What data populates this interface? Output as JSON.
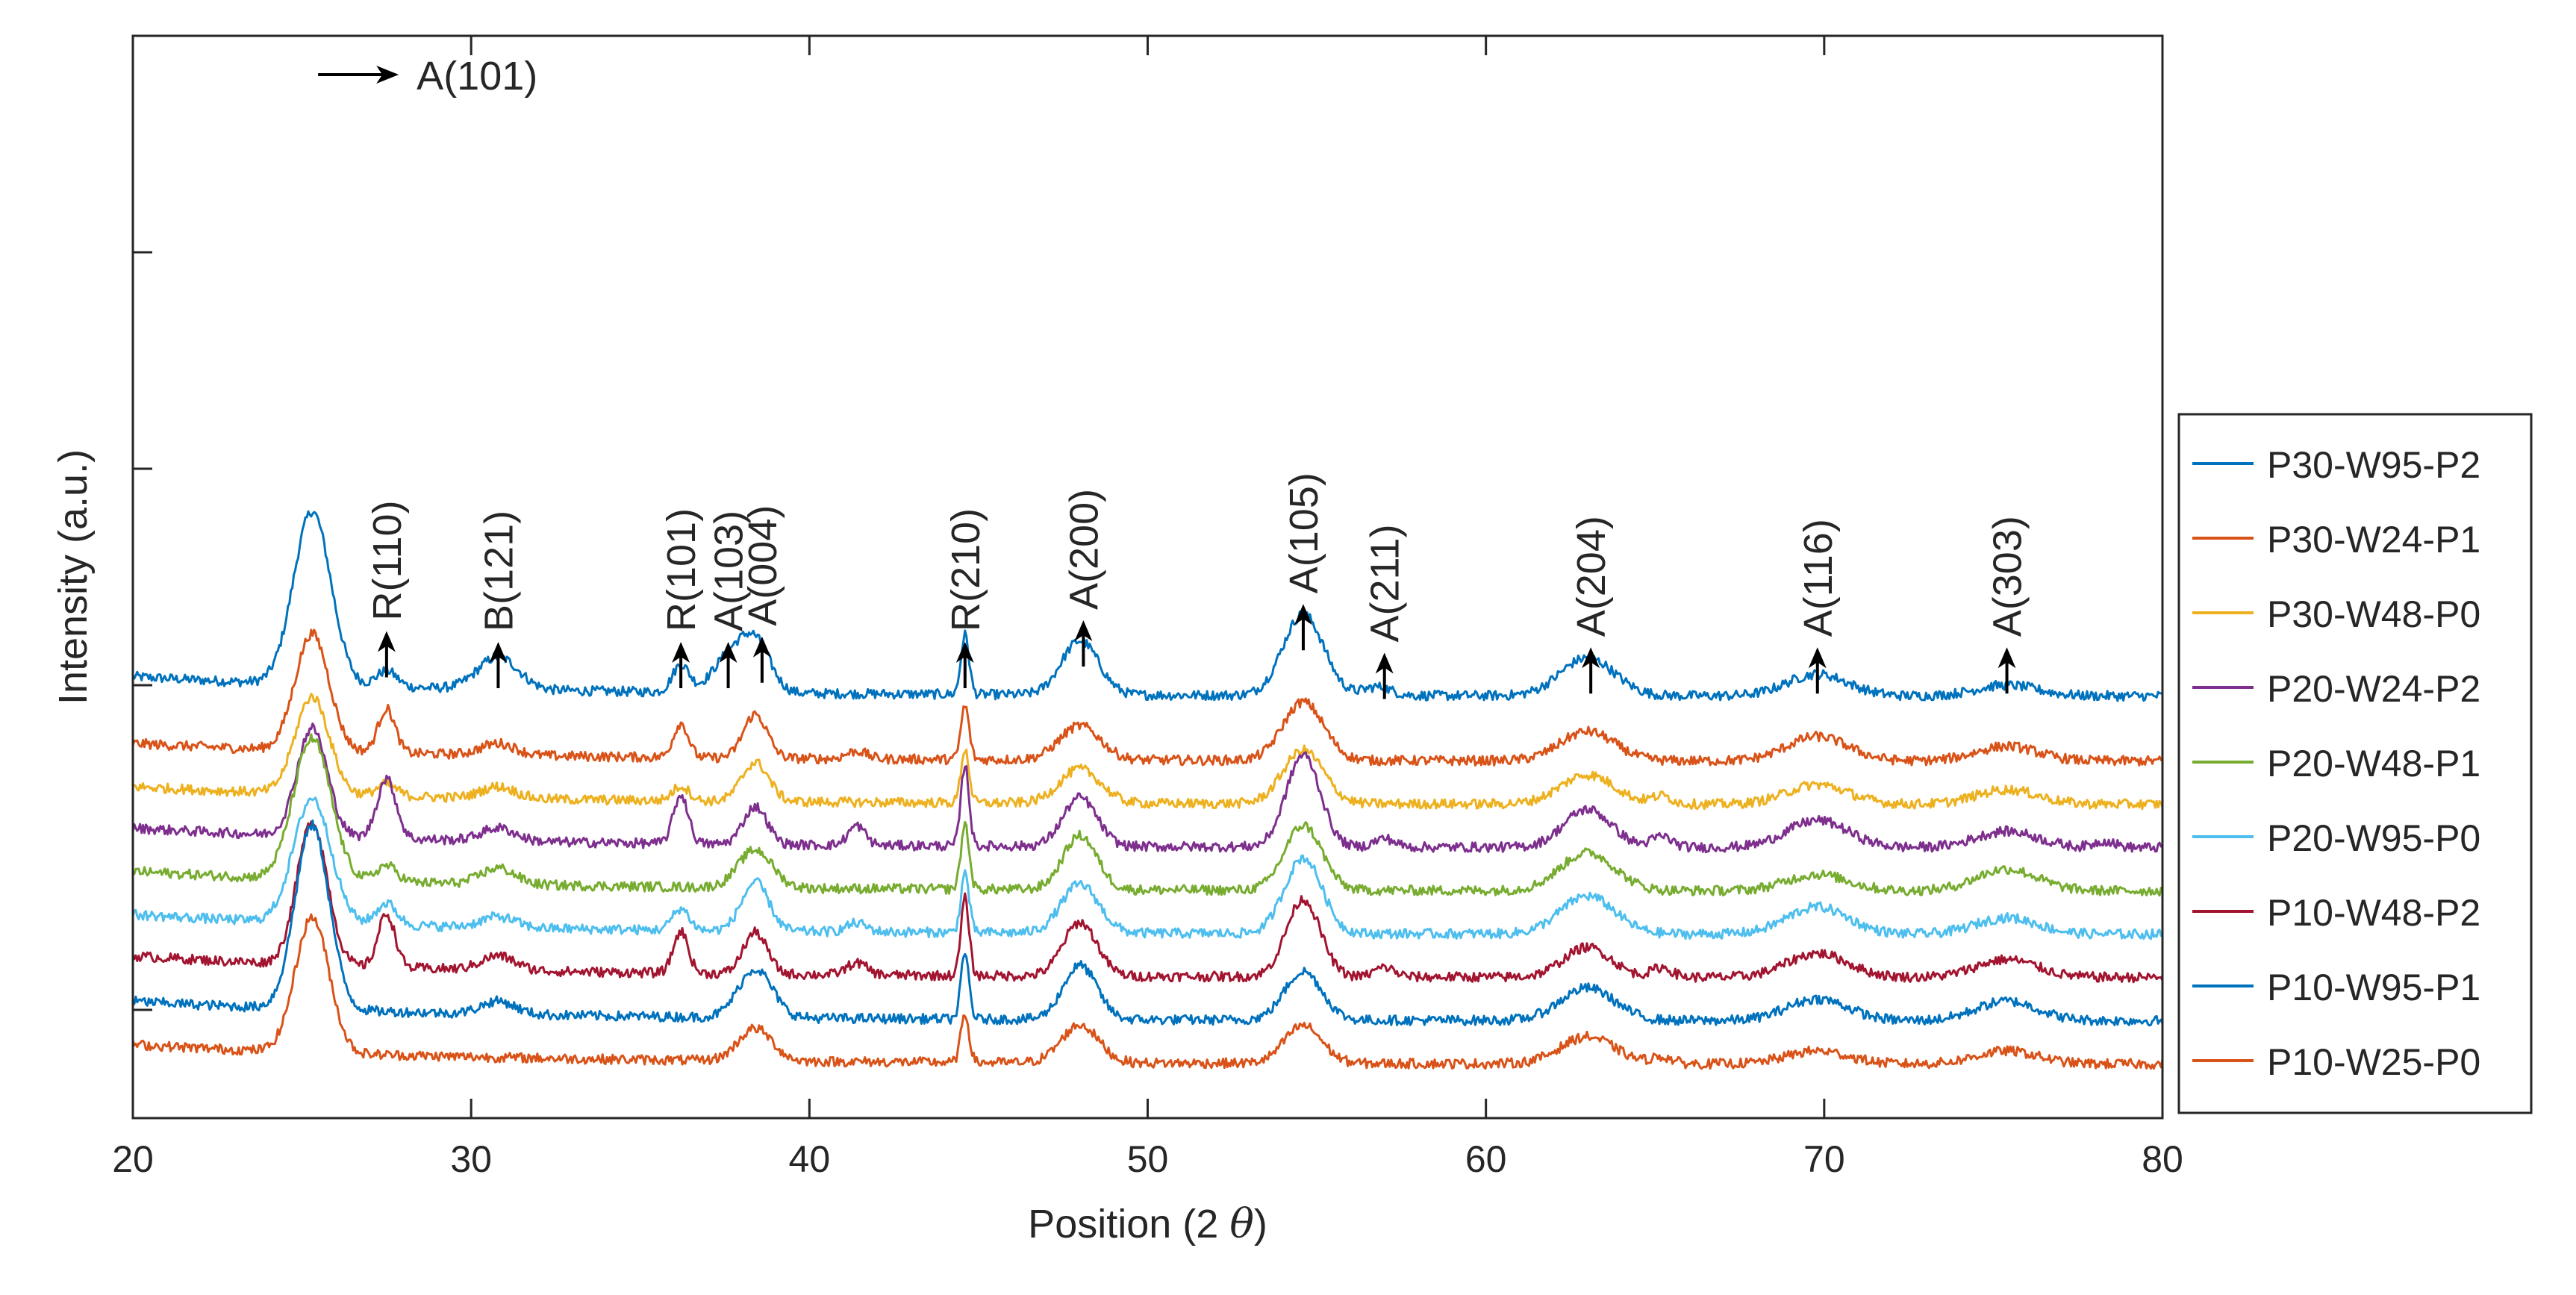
{
  "chart_data": {
    "type": "line",
    "title": "",
    "xlabel_prefix": "Position (2 ",
    "xlabel_symbol": "θ",
    "xlabel_suffix": ")",
    "ylabel": "Intensity (a.u.)",
    "xlim": [
      20,
      80
    ],
    "ylim": [
      0,
      10
    ],
    "x_ticks": [
      20,
      30,
      40,
      50,
      60,
      70,
      80
    ],
    "y_ticks": [
      1,
      4,
      6,
      8,
      10
    ],
    "grid": false,
    "legend_position": "right",
    "series": [
      {
        "name": "P30-W95-P2",
        "color": "#0072BD",
        "baseline": 3.9,
        "scale": 1.0,
        "peaks": [
          [
            25.3,
            1.6,
            0.55
          ],
          [
            27.5,
            0.15,
            0.3
          ],
          [
            30.8,
            0.3,
            0.6
          ],
          [
            36.2,
            0.25,
            0.25
          ],
          [
            37.6,
            0.3,
            0.5
          ],
          [
            38.4,
            0.45,
            0.45
          ],
          [
            44.6,
            0.55,
            0.12
          ],
          [
            48.0,
            0.5,
            0.55
          ],
          [
            54.6,
            0.75,
            0.6
          ],
          [
            56.8,
            0.08,
            0.4
          ],
          [
            63.0,
            0.35,
            0.8
          ],
          [
            69.8,
            0.2,
            0.9
          ],
          [
            75.4,
            0.1,
            0.9
          ]
        ]
      },
      {
        "name": "P30-W24-P1",
        "color": "#D95319",
        "baseline": 3.3,
        "scale": 0.9,
        "peaks": [
          [
            25.3,
            1.2,
            0.5
          ],
          [
            27.5,
            0.45,
            0.25
          ],
          [
            30.8,
            0.12,
            0.5
          ],
          [
            36.2,
            0.35,
            0.22
          ],
          [
            38.4,
            0.45,
            0.35
          ],
          [
            41.4,
            0.08,
            0.3
          ],
          [
            44.6,
            0.55,
            0.12
          ],
          [
            48.0,
            0.35,
            0.6
          ],
          [
            54.6,
            0.6,
            0.6
          ],
          [
            63.0,
            0.3,
            0.8
          ],
          [
            69.8,
            0.25,
            0.9
          ],
          [
            75.4,
            0.15,
            0.9
          ]
        ]
      },
      {
        "name": "P30-W48-P0",
        "color": "#EDB120",
        "baseline": 2.9,
        "scale": 0.9,
        "peaks": [
          [
            25.3,
            1.0,
            0.5
          ],
          [
            27.5,
            0.12,
            0.3
          ],
          [
            30.8,
            0.12,
            0.5
          ],
          [
            36.2,
            0.15,
            0.25
          ],
          [
            38.4,
            0.4,
            0.4
          ],
          [
            44.6,
            0.55,
            0.12
          ],
          [
            48.0,
            0.35,
            0.6
          ],
          [
            54.6,
            0.55,
            0.6
          ],
          [
            63.0,
            0.3,
            0.8
          ],
          [
            65.2,
            0.08,
            0.3
          ],
          [
            69.8,
            0.2,
            0.9
          ],
          [
            75.4,
            0.15,
            0.9
          ]
        ]
      },
      {
        "name": "P20-W24-P2",
        "color": "#7E2F8E",
        "baseline": 2.5,
        "scale": 1.0,
        "peaks": [
          [
            25.3,
            1.0,
            0.45
          ],
          [
            27.5,
            0.55,
            0.28
          ],
          [
            30.8,
            0.12,
            0.5
          ],
          [
            36.2,
            0.45,
            0.22
          ],
          [
            38.4,
            0.35,
            0.35
          ],
          [
            41.4,
            0.18,
            0.25
          ],
          [
            44.6,
            0.75,
            0.12
          ],
          [
            48.0,
            0.45,
            0.5
          ],
          [
            54.6,
            0.85,
            0.5
          ],
          [
            57.0,
            0.08,
            0.3
          ],
          [
            63.0,
            0.35,
            0.7
          ],
          [
            65.2,
            0.1,
            0.3
          ],
          [
            69.8,
            0.25,
            0.9
          ],
          [
            75.4,
            0.15,
            0.9
          ],
          [
            78.3,
            0.06,
            0.3
          ]
        ]
      },
      {
        "name": "P20-W48-P1",
        "color": "#77AC30",
        "baseline": 2.1,
        "scale": 1.0,
        "peaks": [
          [
            25.3,
            1.3,
            0.55
          ],
          [
            27.5,
            0.15,
            0.3
          ],
          [
            30.8,
            0.15,
            0.5
          ],
          [
            38.4,
            0.35,
            0.5
          ],
          [
            44.6,
            0.6,
            0.12
          ],
          [
            48.0,
            0.5,
            0.5
          ],
          [
            54.6,
            0.6,
            0.55
          ],
          [
            63.0,
            0.35,
            0.8
          ],
          [
            69.8,
            0.15,
            0.9
          ],
          [
            75.4,
            0.2,
            0.9
          ]
        ]
      },
      {
        "name": "P20-W95-P0",
        "color": "#4DBEEE",
        "baseline": 1.7,
        "scale": 1.0,
        "peaks": [
          [
            25.3,
            1.15,
            0.55
          ],
          [
            27.5,
            0.2,
            0.3
          ],
          [
            30.8,
            0.1,
            0.5
          ],
          [
            36.2,
            0.2,
            0.25
          ],
          [
            38.4,
            0.45,
            0.4
          ],
          [
            41.4,
            0.08,
            0.3
          ],
          [
            44.6,
            0.55,
            0.12
          ],
          [
            48.0,
            0.45,
            0.55
          ],
          [
            54.6,
            0.7,
            0.55
          ],
          [
            63.0,
            0.35,
            0.8
          ],
          [
            69.8,
            0.25,
            0.9
          ],
          [
            75.4,
            0.15,
            0.9
          ]
        ]
      },
      {
        "name": "P10-W48-P2",
        "color": "#A2142F",
        "baseline": 1.3,
        "scale": 1.1,
        "peaks": [
          [
            25.3,
            1.2,
            0.45
          ],
          [
            27.5,
            0.45,
            0.25
          ],
          [
            30.8,
            0.12,
            0.5
          ],
          [
            36.2,
            0.35,
            0.22
          ],
          [
            38.4,
            0.35,
            0.35
          ],
          [
            41.4,
            0.1,
            0.3
          ],
          [
            44.6,
            0.65,
            0.12
          ],
          [
            48.0,
            0.45,
            0.5
          ],
          [
            54.6,
            0.65,
            0.5
          ],
          [
            57.0,
            0.08,
            0.3
          ],
          [
            63.0,
            0.25,
            0.7
          ],
          [
            65.2,
            0.08,
            0.3
          ],
          [
            69.8,
            0.2,
            0.9
          ],
          [
            75.4,
            0.15,
            0.9
          ]
        ]
      },
      {
        "name": "P10-W95-P1",
        "color": "#0072BD",
        "baseline": 0.9,
        "scale": 1.0,
        "peaks": [
          [
            25.3,
            1.7,
            0.5
          ],
          [
            30.8,
            0.12,
            0.5
          ],
          [
            38.4,
            0.45,
            0.5
          ],
          [
            44.6,
            0.6,
            0.12
          ],
          [
            48.0,
            0.5,
            0.5
          ],
          [
            54.6,
            0.45,
            0.55
          ],
          [
            63.0,
            0.3,
            0.8
          ],
          [
            69.8,
            0.2,
            0.9
          ],
          [
            75.4,
            0.18,
            0.9
          ]
        ]
      },
      {
        "name": "P10-W25-P0",
        "color": "#D95319",
        "baseline": 0.5,
        "scale": 1.0,
        "peaks": [
          [
            25.3,
            1.25,
            0.5
          ],
          [
            38.4,
            0.3,
            0.5
          ],
          [
            44.6,
            0.45,
            0.12
          ],
          [
            48.0,
            0.35,
            0.55
          ],
          [
            54.6,
            0.35,
            0.55
          ],
          [
            63.0,
            0.25,
            0.8
          ],
          [
            65.2,
            0.06,
            0.3
          ],
          [
            69.8,
            0.12,
            0.9
          ],
          [
            75.4,
            0.12,
            0.9
          ]
        ]
      }
    ],
    "annotations": [
      {
        "label": "A(101)",
        "x": 25.3,
        "direction": "right"
      },
      {
        "label": "R(110)",
        "x": 27.5,
        "y_tip": 4.5
      },
      {
        "label": "B(121)",
        "x": 30.8,
        "y_tip": 4.4
      },
      {
        "label": "R(101)",
        "x": 36.2,
        "y_tip": 4.4
      },
      {
        "label": "A(103)",
        "x": 37.6,
        "y_tip": 4.4
      },
      {
        "label": "A(004)",
        "x": 38.6,
        "y_tip": 4.45
      },
      {
        "label": "R(210)",
        "x": 44.6,
        "y_tip": 4.4
      },
      {
        "label": "A(200)",
        "x": 48.1,
        "y_tip": 4.6
      },
      {
        "label": "A(105)",
        "x": 54.6,
        "y_tip": 4.75
      },
      {
        "label": "A(211)",
        "x": 57.0,
        "y_tip": 4.3
      },
      {
        "label": "A(204)",
        "x": 63.1,
        "y_tip": 4.35
      },
      {
        "label": "A(116)",
        "x": 69.8,
        "y_tip": 4.35
      },
      {
        "label": "A(303)",
        "x": 75.4,
        "y_tip": 4.35
      }
    ]
  }
}
